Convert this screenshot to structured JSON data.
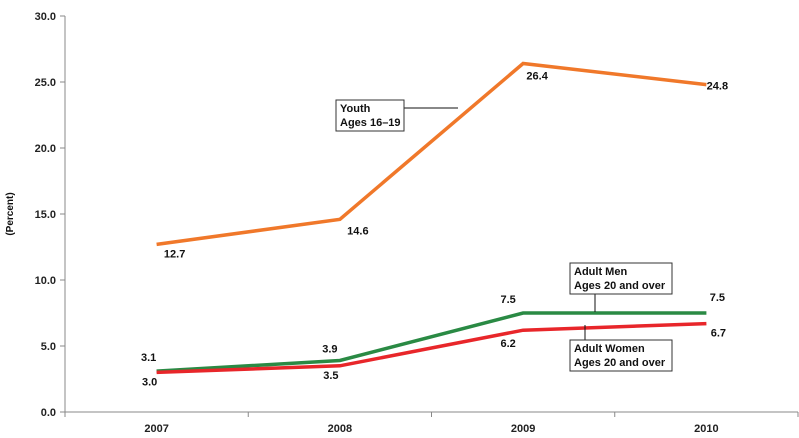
{
  "chart_data": {
    "type": "line",
    "ylabel": "(Percent)",
    "xlabel": "",
    "ylim": [
      0,
      30
    ],
    "yticks": [
      "0.0",
      "5.0",
      "10.0",
      "15.0",
      "20.0",
      "25.0",
      "30.0"
    ],
    "categories": [
      "2007",
      "2008",
      "2009",
      "2010"
    ],
    "grid": false,
    "series": [
      {
        "key": "youth",
        "values": [
          12.7,
          14.6,
          26.4,
          24.8
        ],
        "labels": [
          "12.7",
          "14.6",
          "26.4",
          "24.8"
        ],
        "color": "#f0782a",
        "annotation": [
          "Youth",
          "Ages 16–19"
        ]
      },
      {
        "key": "men",
        "values": [
          3.1,
          3.9,
          7.5,
          7.5
        ],
        "labels": [
          "3.1",
          "3.9",
          "7.5",
          "7.5"
        ],
        "color": "#2a8a44",
        "annotation": [
          "Adult Men",
          "Ages 20 and over"
        ]
      },
      {
        "key": "women",
        "values": [
          3.0,
          3.5,
          6.2,
          6.7
        ],
        "labels": [
          "3.0",
          "3.5",
          "6.2",
          "6.7"
        ],
        "color": "#e8262a",
        "annotation": [
          "Adult Women",
          "Ages 20 and over"
        ]
      }
    ]
  }
}
